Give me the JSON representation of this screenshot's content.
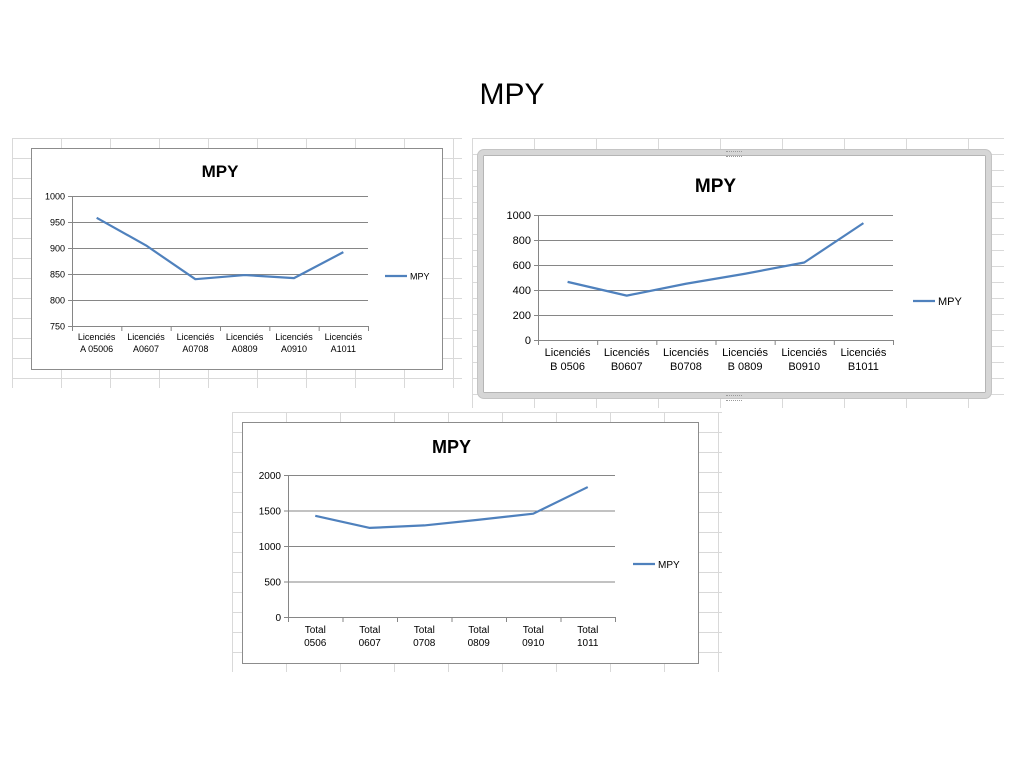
{
  "slide": {
    "title": "MPY"
  },
  "colors": {
    "series": "#4f81bd",
    "grid": "#868686",
    "axis": "#868686",
    "sheet_grid": "#d9d9d9"
  },
  "chart_data": [
    {
      "type": "line",
      "title": "MPY",
      "categories": [
        [
          "Licenciés",
          "A 05006"
        ],
        [
          "Licenciés",
          "A0607"
        ],
        [
          "Licenciés",
          "A0708"
        ],
        [
          "Licenciés",
          "A0809"
        ],
        [
          "Licenciés",
          "A0910"
        ],
        [
          "Licenciés",
          "A1011"
        ]
      ],
      "series": [
        {
          "name": "MPY",
          "values": [
            958,
            905,
            840,
            848,
            842,
            892
          ]
        }
      ],
      "ylim": [
        750,
        1000
      ],
      "yticks": [
        750,
        800,
        850,
        900,
        950,
        1000
      ],
      "grid": true,
      "legend": "right"
    },
    {
      "type": "line",
      "title": "MPY",
      "categories": [
        [
          "Licenciés",
          "B 0506"
        ],
        [
          "Licenciés",
          "B0607"
        ],
        [
          "Licenciés",
          "B0708"
        ],
        [
          "Licenciés",
          "B 0809"
        ],
        [
          "Licenciés",
          "B0910"
        ],
        [
          "Licenciés",
          "B1011"
        ]
      ],
      "series": [
        {
          "name": "MPY",
          "values": [
            465,
            355,
            450,
            530,
            620,
            935
          ]
        }
      ],
      "ylim": [
        0,
        1000
      ],
      "yticks": [
        0,
        200,
        400,
        600,
        800,
        1000
      ],
      "grid": true,
      "legend": "right"
    },
    {
      "type": "line",
      "title": "MPY",
      "categories": [
        [
          "Total",
          "0506"
        ],
        [
          "Total",
          "0607"
        ],
        [
          "Total",
          "0708"
        ],
        [
          "Total",
          "0809"
        ],
        [
          "Total",
          "0910"
        ],
        [
          "Total",
          "1011"
        ]
      ],
      "series": [
        {
          "name": "MPY",
          "values": [
            1425,
            1255,
            1290,
            1370,
            1455,
            1830
          ]
        }
      ],
      "ylim": [
        0,
        2000
      ],
      "yticks": [
        0,
        500,
        1000,
        1500,
        2000
      ],
      "grid": true,
      "legend": "right"
    }
  ]
}
